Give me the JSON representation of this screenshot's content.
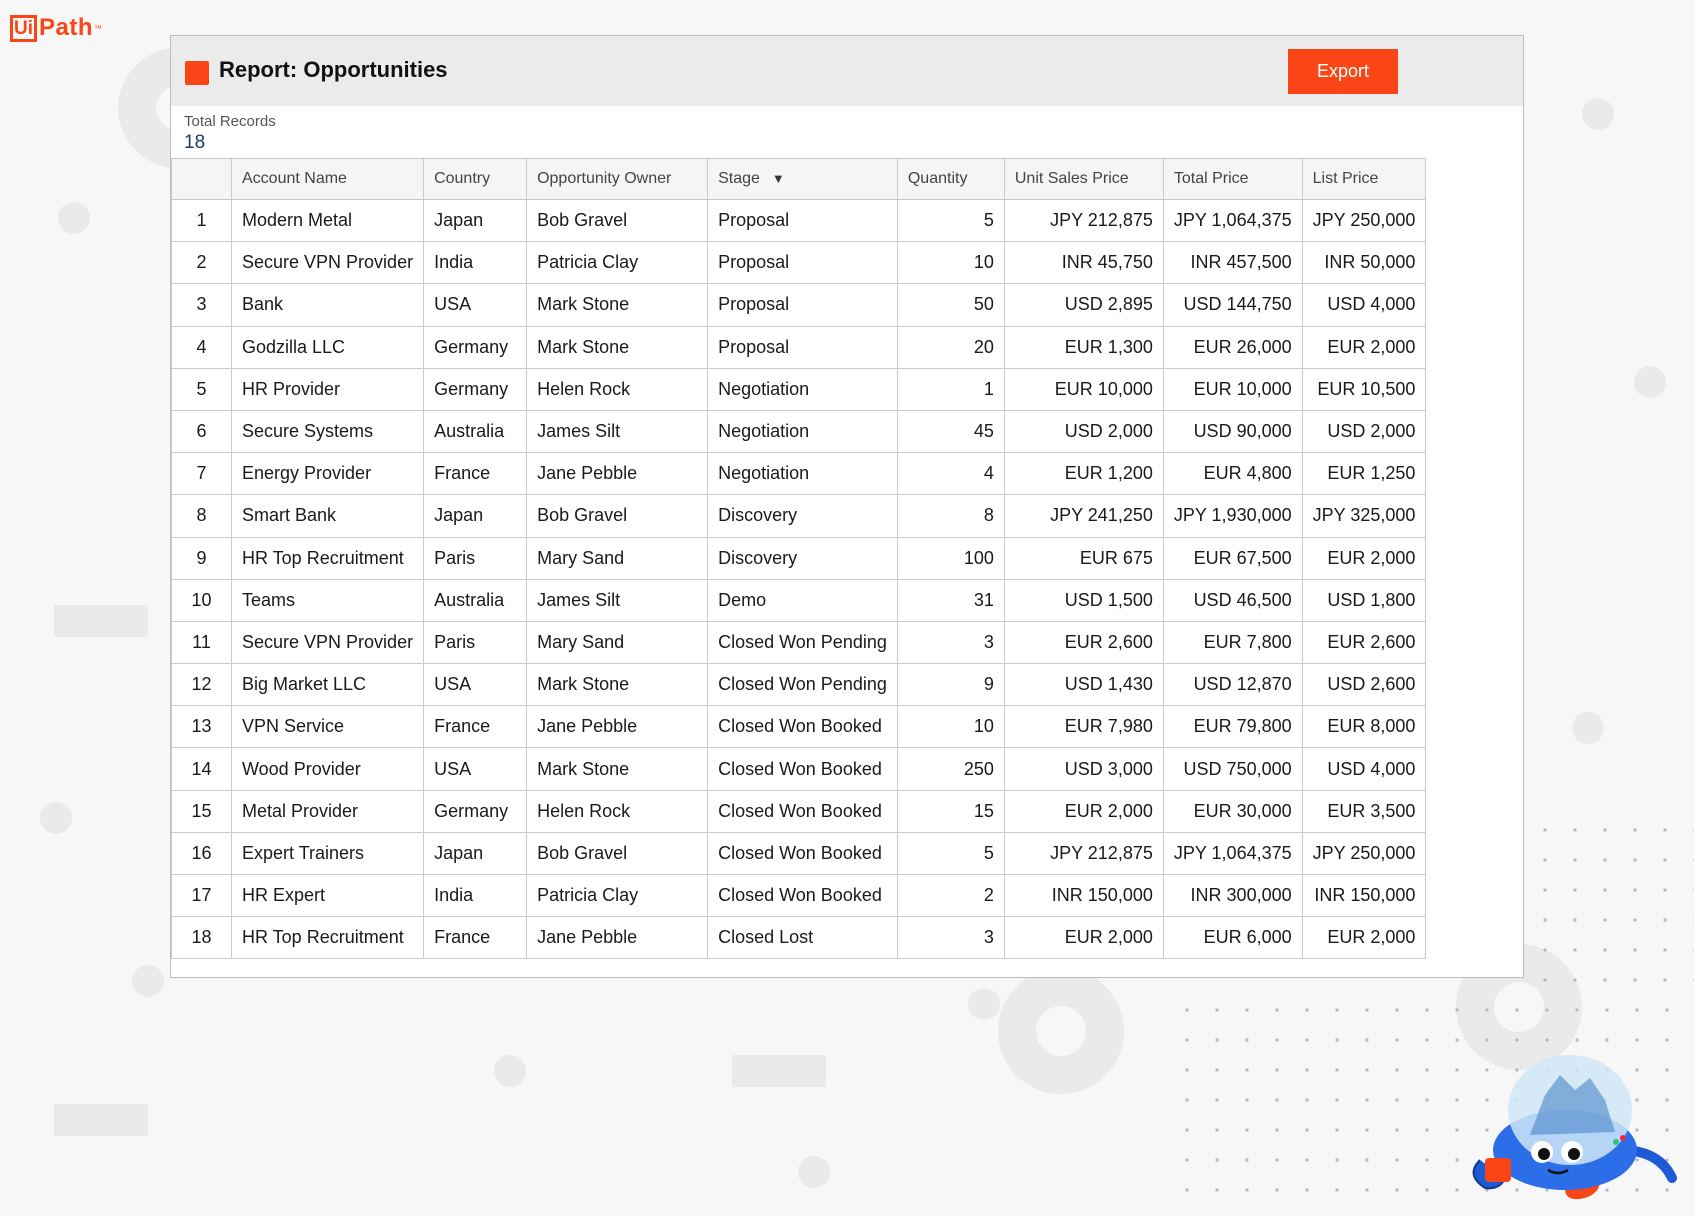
{
  "logo": {
    "box_letters": "Ui",
    "text": "Path",
    "tm": "™"
  },
  "report": {
    "title": "Report: Opportunities",
    "export_label": "Export",
    "total_records_label": "Total Records",
    "total_records_value": "18"
  },
  "table": {
    "columns": [
      "",
      "Account Name",
      "Country",
      "Opportunity Owner",
      "Stage",
      "Quantity",
      "Unit Sales Price",
      "Total Price",
      "List Price"
    ],
    "sort_indicator": "▼",
    "rows": [
      [
        "1",
        "Modern Metal",
        "Japan",
        "Bob Gravel",
        "Proposal",
        "5",
        "JPY 212,875",
        "JPY 1,064,375",
        "JPY 250,000"
      ],
      [
        "2",
        "Secure VPN Provider",
        "India",
        "Patricia Clay",
        "Proposal",
        "10",
        "INR 45,750",
        "INR 457,500",
        "INR 50,000"
      ],
      [
        "3",
        "Bank",
        "USA",
        "Mark Stone",
        "Proposal",
        "50",
        "USD 2,895",
        "USD 144,750",
        "USD 4,000"
      ],
      [
        "4",
        "Godzilla LLC",
        "Germany",
        "Mark Stone",
        "Proposal",
        "20",
        "EUR 1,300",
        "EUR 26,000",
        "EUR 2,000"
      ],
      [
        "5",
        "HR Provider",
        "Germany",
        "Helen Rock",
        "Negotiation",
        "1",
        "EUR 10,000",
        "EUR 10,000",
        "EUR 10,500"
      ],
      [
        "6",
        "Secure Systems",
        "Australia",
        "James Silt",
        "Negotiation",
        "45",
        "USD 2,000",
        "USD 90,000",
        "USD 2,000"
      ],
      [
        "7",
        "Energy Provider",
        "France",
        "Jane Pebble",
        "Negotiation",
        "4",
        "EUR 1,200",
        "EUR 4,800",
        "EUR 1,250"
      ],
      [
        "8",
        "Smart Bank",
        "Japan",
        "Bob Gravel",
        "Discovery",
        "8",
        "JPY 241,250",
        "JPY 1,930,000",
        "JPY 325,000"
      ],
      [
        "9",
        "HR Top Recruitment",
        "Paris",
        "Mary Sand",
        "Discovery",
        "100",
        "EUR 675",
        "EUR 67,500",
        "EUR 2,000"
      ],
      [
        "10",
        "Teams",
        "Australia",
        "James Silt",
        "Demo",
        "31",
        "USD 1,500",
        "USD 46,500",
        "USD 1,800"
      ],
      [
        "11",
        "Secure VPN Provider",
        "Paris",
        "Mary Sand",
        "Closed Won Pending",
        "3",
        "EUR 2,600",
        "EUR 7,800",
        "EUR 2,600"
      ],
      [
        "12",
        "Big Market LLC",
        "USA",
        "Mark Stone",
        "Closed Won Pending",
        "9",
        "USD 1,430",
        "USD 12,870",
        "USD 2,600"
      ],
      [
        "13",
        "VPN Service",
        "France",
        "Jane Pebble",
        "Closed Won Booked",
        "10",
        "EUR 7,980",
        "EUR 79,800",
        "EUR 8,000"
      ],
      [
        "14",
        "Wood Provider",
        "USA",
        "Mark Stone",
        "Closed Won Booked",
        "250",
        "USD 3,000",
        "USD 750,000",
        "USD 4,000"
      ],
      [
        "15",
        "Metal Provider",
        "Germany",
        "Helen Rock",
        "Closed Won Booked",
        "15",
        "EUR 2,000",
        "EUR 30,000",
        "EUR 3,500"
      ],
      [
        "16",
        "Expert Trainers",
        "Japan",
        "Bob Gravel",
        "Closed Won Booked",
        "5",
        "JPY 212,875",
        "JPY 1,064,375",
        "JPY 250,000"
      ],
      [
        "17",
        "HR Expert",
        "India",
        "Patricia Clay",
        "Closed Won Booked",
        "2",
        "INR 150,000",
        "INR 300,000",
        "INR 150,000"
      ],
      [
        "18",
        "HR Top Recruitment",
        "France",
        "Jane Pebble",
        "Closed Lost",
        "3",
        "EUR 2,000",
        "EUR 6,000",
        "EUR 2,000"
      ]
    ]
  },
  "colors": {
    "accent": "#fa4616",
    "header_bg": "#ebebeb",
    "record_value": "#1f3a60"
  },
  "icons": {
    "header": "report-square-icon",
    "mascot": "robot-mascot"
  }
}
